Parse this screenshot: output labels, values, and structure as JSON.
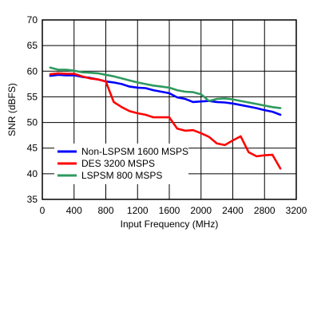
{
  "chart_data": {
    "type": "line",
    "title": "",
    "xlabel": "Input Frequency (MHz)",
    "ylabel": "SNR (dBFS)",
    "xlim": [
      0,
      3200
    ],
    "ylim": [
      35,
      70
    ],
    "x_ticks": [
      0,
      400,
      800,
      1200,
      1600,
      2000,
      2400,
      2800,
      3200
    ],
    "y_ticks": [
      35,
      40,
      45,
      50,
      55,
      60,
      65,
      70
    ],
    "grid": true,
    "legend_position": "lower-left",
    "series": [
      {
        "name": "Non-LSPSM 1600 MSPS",
        "color": "#0000ff",
        "points": [
          [
            100,
            59.1
          ],
          [
            200,
            59.3
          ],
          [
            300,
            59.2
          ],
          [
            400,
            59.2
          ],
          [
            500,
            58.9
          ],
          [
            600,
            58.7
          ],
          [
            700,
            58.4
          ],
          [
            800,
            58.0
          ],
          [
            900,
            57.8
          ],
          [
            1000,
            57.5
          ],
          [
            1100,
            57.0
          ],
          [
            1200,
            56.8
          ],
          [
            1300,
            56.7
          ],
          [
            1400,
            56.3
          ],
          [
            1500,
            56.0
          ],
          [
            1600,
            55.7
          ],
          [
            1700,
            54.9
          ],
          [
            1800,
            54.6
          ],
          [
            1900,
            54.0
          ],
          [
            2000,
            54.1
          ],
          [
            2100,
            54.2
          ],
          [
            2200,
            54.0
          ],
          [
            2300,
            53.9
          ],
          [
            2400,
            53.7
          ],
          [
            2500,
            53.4
          ],
          [
            2600,
            53.1
          ],
          [
            2700,
            52.8
          ],
          [
            2800,
            52.4
          ],
          [
            2900,
            52.1
          ],
          [
            3000,
            51.5
          ]
        ]
      },
      {
        "name": "DES 3200 MSPS",
        "color": "#ff0000",
        "points": [
          [
            100,
            59.4
          ],
          [
            200,
            59.6
          ],
          [
            300,
            59.5
          ],
          [
            400,
            59.5
          ],
          [
            500,
            59.0
          ],
          [
            600,
            58.6
          ],
          [
            700,
            58.4
          ],
          [
            800,
            58.0
          ],
          [
            900,
            54.0
          ],
          [
            1000,
            53.0
          ],
          [
            1100,
            52.2
          ],
          [
            1200,
            51.8
          ],
          [
            1300,
            51.5
          ],
          [
            1400,
            51.0
          ],
          [
            1500,
            51.0
          ],
          [
            1600,
            51.0
          ],
          [
            1700,
            48.8
          ],
          [
            1800,
            48.4
          ],
          [
            1900,
            48.5
          ],
          [
            2000,
            47.9
          ],
          [
            2100,
            47.2
          ],
          [
            2200,
            45.9
          ],
          [
            2300,
            45.6
          ],
          [
            2400,
            46.5
          ],
          [
            2500,
            47.3
          ],
          [
            2600,
            44.2
          ],
          [
            2700,
            43.4
          ],
          [
            2800,
            43.6
          ],
          [
            2900,
            43.7
          ],
          [
            3000,
            41.0
          ]
        ]
      },
      {
        "name": "LSPSM 800 MSPS",
        "color": "#2e9a5e",
        "points": [
          [
            100,
            60.7
          ],
          [
            200,
            60.3
          ],
          [
            300,
            60.3
          ],
          [
            400,
            60.1
          ],
          [
            500,
            59.8
          ],
          [
            600,
            59.7
          ],
          [
            700,
            59.6
          ],
          [
            800,
            59.3
          ],
          [
            900,
            59.0
          ],
          [
            1000,
            58.6
          ],
          [
            1100,
            58.2
          ],
          [
            1200,
            57.8
          ],
          [
            1300,
            57.5
          ],
          [
            1400,
            57.2
          ],
          [
            1500,
            57.0
          ],
          [
            1600,
            56.8
          ],
          [
            1700,
            56.3
          ],
          [
            1800,
            56.0
          ],
          [
            1900,
            55.9
          ],
          [
            2000,
            55.5
          ],
          [
            2100,
            54.2
          ],
          [
            2200,
            54.6
          ],
          [
            2300,
            54.7
          ],
          [
            2400,
            54.5
          ],
          [
            2500,
            54.2
          ],
          [
            2600,
            53.9
          ],
          [
            2700,
            53.6
          ],
          [
            2800,
            53.3
          ],
          [
            2900,
            53.0
          ],
          [
            3000,
            52.8
          ]
        ]
      }
    ]
  }
}
